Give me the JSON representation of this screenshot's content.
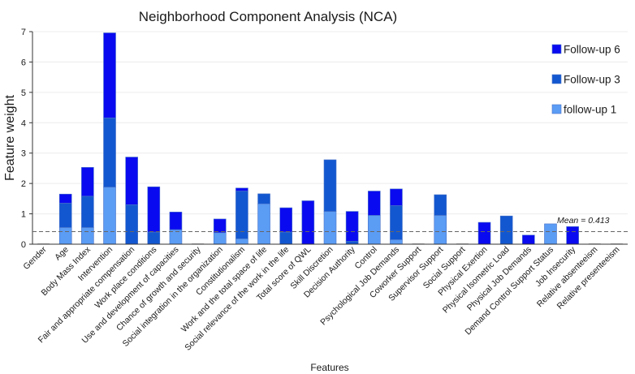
{
  "chart_data": {
    "type": "bar",
    "stacked": true,
    "title": "Neighborhood Component Analysis (NCA)",
    "xlabel": "Features",
    "ylabel": "Feature weight",
    "ylim": [
      0,
      7
    ],
    "yticks": [
      0,
      1,
      2,
      3,
      4,
      5,
      6,
      7
    ],
    "categories": [
      "Gender",
      "Age",
      "Body Mass Index",
      "Intervention",
      "Fair and appropriate compensation",
      "Work place conditions",
      "Use and development of capacities",
      "Chance of growth and security",
      "Social integration in the organization",
      "Constitutionalism",
      "Work and the total space of life",
      "Social relevance of the work in the life",
      "Total score of QWL",
      "Skill Discretion",
      "Decision Authority",
      "Control",
      "Psychological Job Demands",
      "Coworker Support",
      "Supervisor Support",
      "Social Support",
      "Physical Exertion",
      "Physical Isometric Load",
      "Physical Job Demands",
      "Demand Control Support Status",
      "Job Insecurity",
      "Relative absenteeism",
      "Relative presenteeism"
    ],
    "series": [
      {
        "name": "follow-up 1",
        "color": "#5b9cf5",
        "values": [
          0,
          0.55,
          0.55,
          1.88,
          0,
          0,
          0.48,
          0,
          0.38,
          0.18,
          1.33,
          0,
          0,
          1.08,
          0,
          0.95,
          0.15,
          0,
          0.95,
          0,
          0,
          0,
          0,
          0.67,
          0,
          0,
          0
        ]
      },
      {
        "name": "Follow-up 3",
        "color": "#1357d0",
        "values": [
          0,
          0.8,
          1.03,
          2.28,
          1.3,
          0.4,
          0,
          0,
          0,
          1.57,
          0.33,
          0.4,
          0,
          1.7,
          0.1,
          0,
          1.12,
          0,
          0.68,
          0,
          0,
          0.93,
          0,
          0,
          0,
          0,
          0
        ]
      },
      {
        "name": "Follow-up 6",
        "color": "#0a0af0",
        "values": [
          0,
          0.3,
          0.95,
          2.8,
          1.57,
          1.49,
          0.58,
          0,
          0.45,
          0.1,
          0,
          0.8,
          1.43,
          0,
          0.98,
          0.8,
          0.55,
          0,
          0,
          0,
          0.72,
          0,
          0.3,
          0,
          0.58,
          0,
          0
        ]
      }
    ],
    "legend": [
      "Follow-up 6",
      "Follow-up 3",
      "follow-up 1"
    ],
    "legend_position": "top-right",
    "mean": 0.413,
    "mean_label": "Mean = 0.413",
    "grid": false
  }
}
